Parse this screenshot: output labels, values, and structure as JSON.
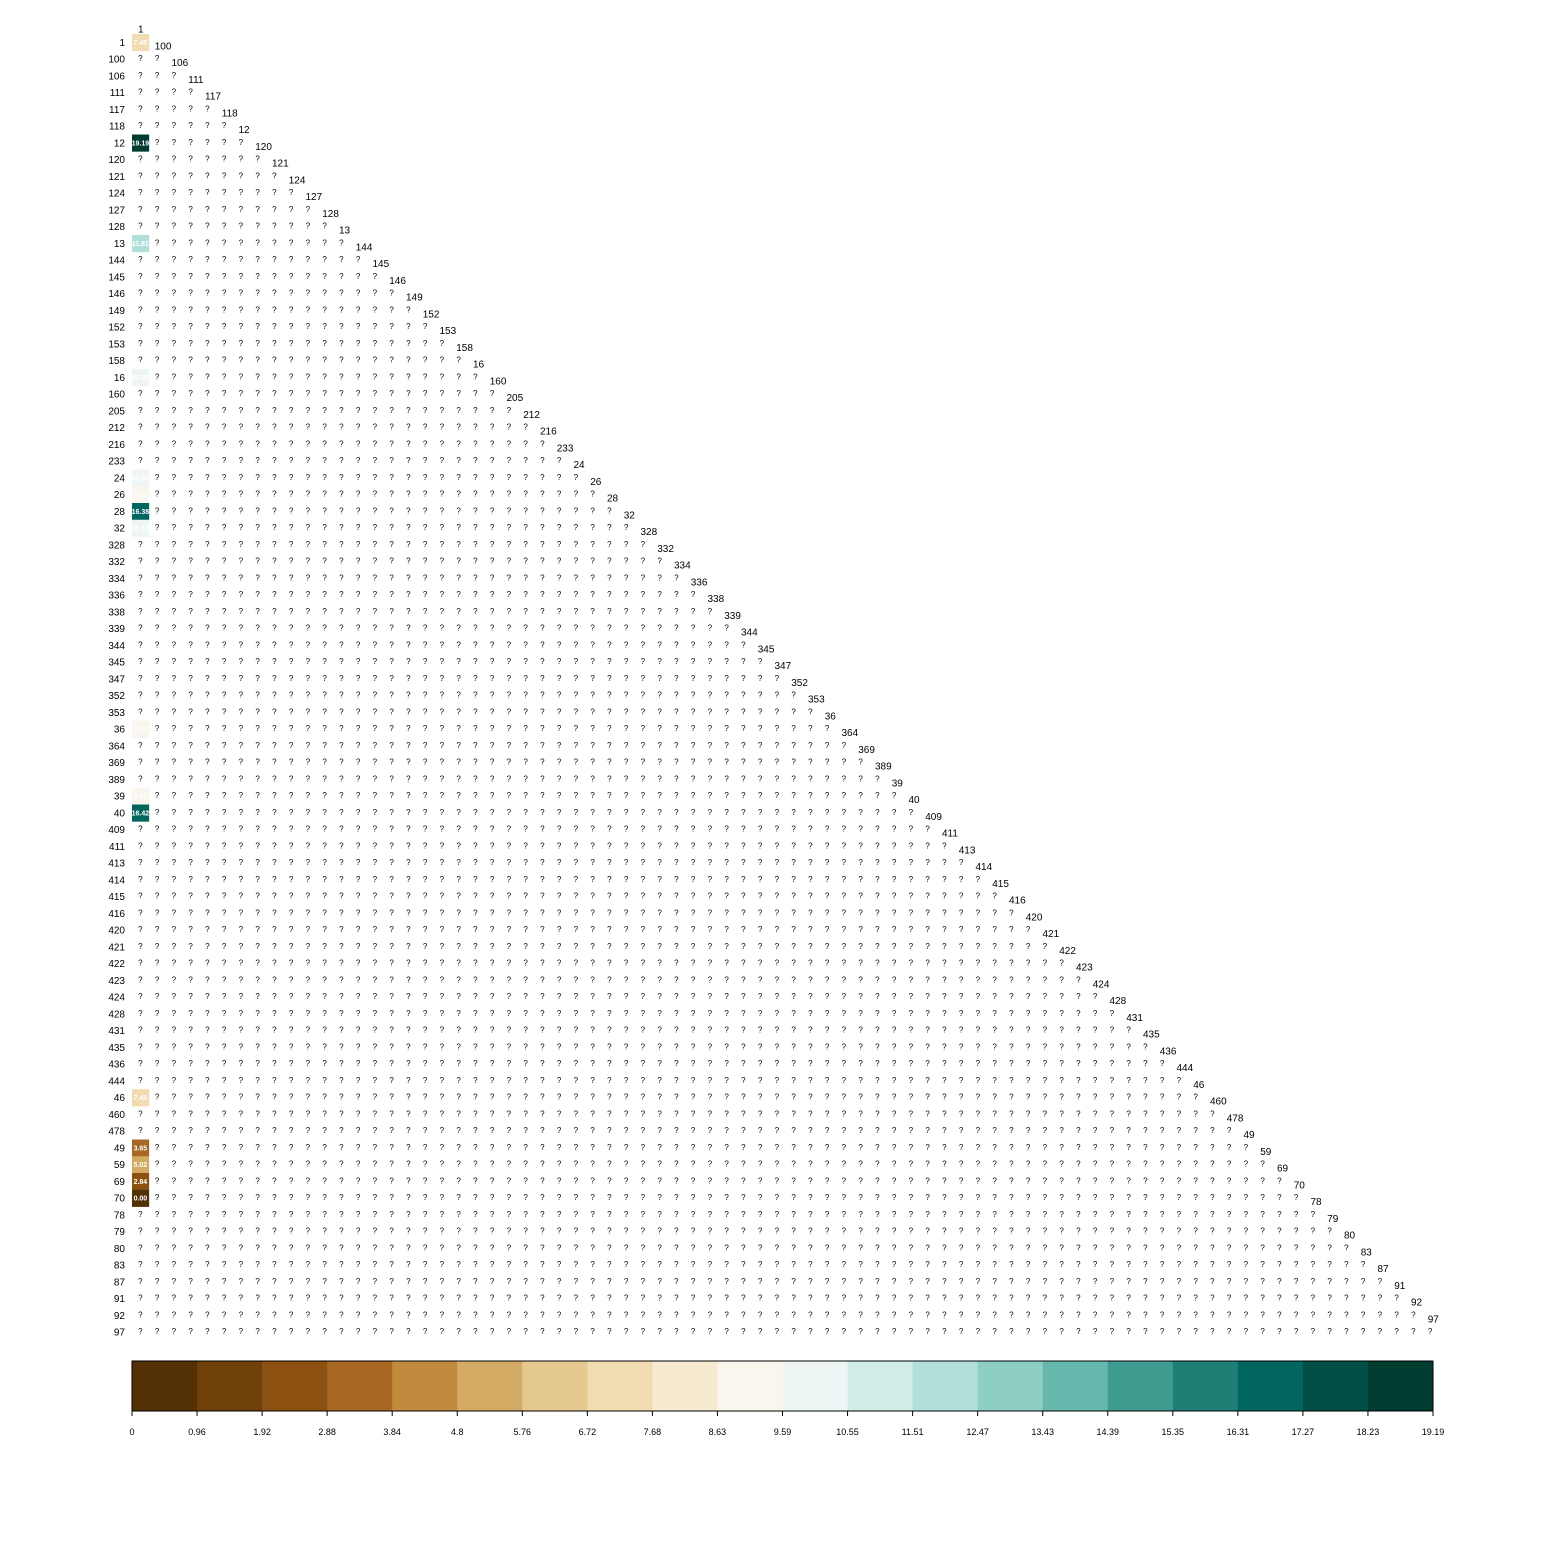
{
  "chart_data": {
    "type": "heatmap",
    "title": "",
    "xlabel": "",
    "ylabel": "",
    "layout": "lower-triangle",
    "labels": [
      "1",
      "100",
      "106",
      "111",
      "117",
      "118",
      "12",
      "120",
      "121",
      "124",
      "127",
      "128",
      "13",
      "144",
      "145",
      "146",
      "149",
      "152",
      "153",
      "158",
      "16",
      "160",
      "205",
      "212",
      "216",
      "233",
      "24",
      "26",
      "28",
      "32",
      "328",
      "332",
      "334",
      "336",
      "338",
      "339",
      "344",
      "345",
      "347",
      "352",
      "353",
      "36",
      "364",
      "369",
      "389",
      "39",
      "40",
      "409",
      "411",
      "413",
      "414",
      "415",
      "416",
      "420",
      "421",
      "422",
      "423",
      "424",
      "428",
      "431",
      "435",
      "436",
      "444",
      "46",
      "460",
      "478",
      "49",
      "59",
      "69",
      "70",
      "78",
      "79",
      "80",
      "83",
      "87",
      "91",
      "92",
      "97"
    ],
    "missing_symbol": "?",
    "known_cells": [
      {
        "row": "1",
        "col": "1",
        "value": 7.45,
        "label": "7.45"
      },
      {
        "row": "12",
        "col": "1",
        "value": 19.19,
        "label": "19.19"
      },
      {
        "row": "13",
        "col": "1",
        "value": 11.81,
        "label": "11.81"
      },
      {
        "row": "16",
        "col": "1",
        "value": 10.2,
        "label": "10.20"
      },
      {
        "row": "24",
        "col": "1",
        "value": 10.0,
        "label": "10.00"
      },
      {
        "row": "26",
        "col": "1",
        "value": 9.3,
        "label": "9.30"
      },
      {
        "row": "28",
        "col": "1",
        "value": 16.38,
        "label": "16.38"
      },
      {
        "row": "32",
        "col": "1",
        "value": 10.1,
        "label": "10.10"
      },
      {
        "row": "36",
        "col": "1",
        "value": 9.0,
        "label": "9.00"
      },
      {
        "row": "39",
        "col": "1",
        "value": 9.1,
        "label": "9.10"
      },
      {
        "row": "40",
        "col": "1",
        "value": 16.42,
        "label": "16.42"
      },
      {
        "row": "46",
        "col": "1",
        "value": 7.45,
        "label": "7.45"
      },
      {
        "row": "49",
        "col": "1",
        "value": 3.65,
        "label": "3.65"
      },
      {
        "row": "59",
        "col": "1",
        "value": 5.02,
        "label": "5.02"
      },
      {
        "row": "69",
        "col": "1",
        "value": 2.84,
        "label": "2.84"
      },
      {
        "row": "70",
        "col": "1",
        "value": 0.0,
        "label": "0.00"
      }
    ],
    "colorbar": {
      "ticks": [
        "0",
        "0.96",
        "1.92",
        "2.88",
        "3.84",
        "4.8",
        "5.76",
        "6.72",
        "7.68",
        "8.63",
        "9.59",
        "10.55",
        "11.51",
        "12.47",
        "13.43",
        "14.39",
        "15.35",
        "16.31",
        "17.27",
        "18.23",
        "19.19"
      ],
      "colors": [
        "#543005",
        "#70400b",
        "#8c5111",
        "#a86722",
        "#c18a3d",
        "#d4ab64",
        "#e4c88e",
        "#f0dcb0",
        "#f6ead1",
        "#faf6ee",
        "#eef6f5",
        "#d2ece8",
        "#b1e0da",
        "#8ecfc4",
        "#65b8ab",
        "#3f9b8f",
        "#1f7f76",
        "#00665e",
        "#004f45",
        "#003c30"
      ],
      "min": 0,
      "max": 19.19
    }
  }
}
